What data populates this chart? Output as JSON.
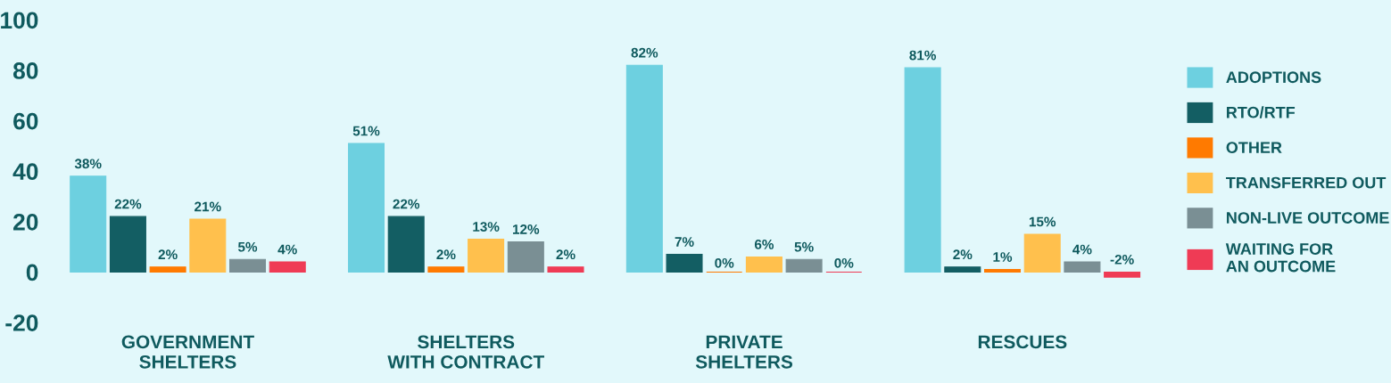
{
  "chart_data": {
    "type": "bar",
    "categories": [
      "GOVERNMENT\nSHELTERS",
      "SHELTERS\nWITH CONTRACT",
      "PRIVATE\nSHELTERS",
      "RESCUES"
    ],
    "series": [
      {
        "name": "ADOPTIONS",
        "color": "#6dd0e0",
        "values": [
          38,
          51,
          82,
          81
        ],
        "value_labels": [
          "38%",
          "51%",
          "82%",
          "81%"
        ]
      },
      {
        "name": "RTO/RTF",
        "color": "#135e63",
        "values": [
          22,
          22,
          7,
          2
        ],
        "value_labels": [
          "22%",
          "22%",
          "7%",
          "2%"
        ]
      },
      {
        "name": "OTHER",
        "color": "#ff7a00",
        "values": [
          2,
          2,
          0,
          1
        ],
        "value_labels": [
          "2%",
          "2%",
          "0%",
          "1%"
        ]
      },
      {
        "name": "TRANSFERRED OUT",
        "color": "#ffc04d",
        "values": [
          21,
          13,
          6,
          15
        ],
        "value_labels": [
          "21%",
          "13%",
          "6%",
          "15%"
        ]
      },
      {
        "name": "NON-LIVE OUTCOME",
        "color": "#7a8f94",
        "values": [
          5,
          12,
          5,
          4
        ],
        "value_labels": [
          "5%",
          "12%",
          "5%",
          "4%"
        ]
      },
      {
        "name": "WAITING FOR\nAN OUTCOME",
        "color": "#ef3b55",
        "values": [
          4,
          2,
          0,
          -2
        ],
        "value_labels": [
          "4%",
          "2%",
          "0%",
          "-2%"
        ]
      }
    ],
    "ylim": [
      -20,
      100
    ],
    "yticks": [
      -20,
      0,
      20,
      40,
      60,
      80,
      100
    ],
    "grid": false,
    "legend": "right"
  }
}
